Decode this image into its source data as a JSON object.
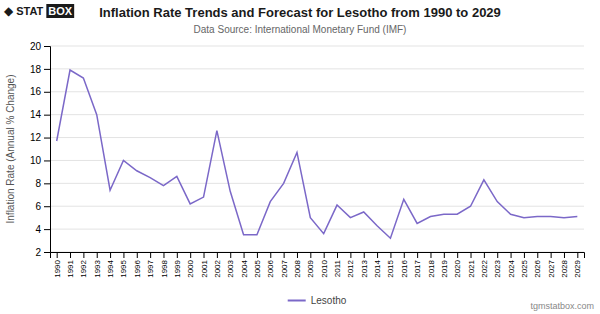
{
  "chart_data": {
    "type": "line",
    "title": "Inflation Rate Trends and Forecast for Lesotho from 1990 to 2029",
    "subtitle": "Data Source: International Monetary Fund (IMF)",
    "ylabel": "Inflation Rate (Annual % Change)",
    "annotations": [
      "◆",
      "STAT",
      "BOX",
      "tgmstatbox.com"
    ],
    "x": [
      1990,
      1991,
      1992,
      1993,
      1994,
      1995,
      1996,
      1997,
      1998,
      1999,
      2000,
      2001,
      2002,
      2003,
      2004,
      2005,
      2006,
      2007,
      2008,
      2009,
      2010,
      2011,
      2012,
      2013,
      2014,
      2015,
      2016,
      2017,
      2018,
      2019,
      2020,
      2021,
      2022,
      2023,
      2024,
      2025,
      2026,
      2027,
      2028,
      2029
    ],
    "series": [
      {
        "name": "Lesotho",
        "color": "#7B68C8",
        "values": [
          11.7,
          17.9,
          17.2,
          14.0,
          7.4,
          10.0,
          9.1,
          8.5,
          7.8,
          8.6,
          6.2,
          6.8,
          12.6,
          7.3,
          3.5,
          3.5,
          6.4,
          8.0,
          10.7,
          5.0,
          3.6,
          6.1,
          5.0,
          5.5,
          4.3,
          3.2,
          6.6,
          4.5,
          5.1,
          5.3,
          5.3,
          6.0,
          8.3,
          6.4,
          5.3,
          5.0,
          5.1,
          5.1,
          5.0,
          5.1
        ]
      }
    ],
    "xlim": [
      1989.5,
      2029.5
    ],
    "xticks": [
      1990,
      1991,
      1992,
      1993,
      1994,
      1995,
      1996,
      1997,
      1998,
      1999,
      2000,
      2001,
      2002,
      2003,
      2004,
      2005,
      2006,
      2007,
      2008,
      2009,
      2010,
      2011,
      2012,
      2013,
      2014,
      2015,
      2016,
      2017,
      2018,
      2019,
      2020,
      2021,
      2022,
      2023,
      2024,
      2025,
      2026,
      2027,
      2028,
      2029
    ],
    "ylim": [
      2,
      20
    ],
    "yticks": [
      2,
      4,
      6,
      8,
      10,
      12,
      14,
      16,
      18,
      20
    ],
    "grid": true,
    "legend": "bottom"
  }
}
